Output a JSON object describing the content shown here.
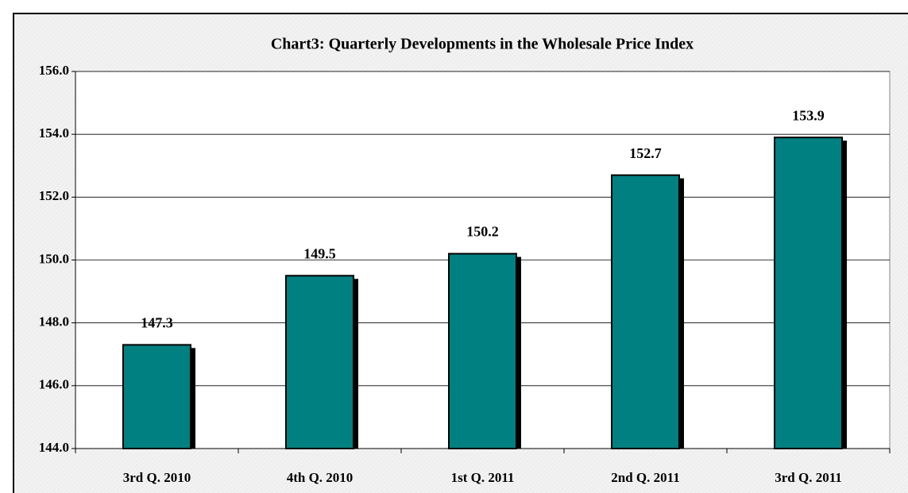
{
  "chart_data": {
    "type": "bar",
    "title": "Chart3: Quarterly Developments in the Wholesale Price Index",
    "categories": [
      "3rd Q. 2010",
      "4th Q. 2010",
      "1st Q. 2011",
      "2nd Q. 2011",
      "3rd Q. 2011"
    ],
    "values": [
      147.3,
      149.5,
      150.2,
      152.7,
      153.9
    ],
    "color": "#008080",
    "ylim": [
      144,
      156
    ],
    "yticks": [
      {
        "value": 144,
        "label": "144.0"
      },
      {
        "value": 146,
        "label": "146.0"
      },
      {
        "value": 148,
        "label": "148.0"
      },
      {
        "value": 150,
        "label": "150.0"
      },
      {
        "value": 152,
        "label": "152.0"
      },
      {
        "value": 154,
        "label": "154.0"
      },
      {
        "value": 156,
        "label": "156.0"
      }
    ],
    "grid": true
  }
}
